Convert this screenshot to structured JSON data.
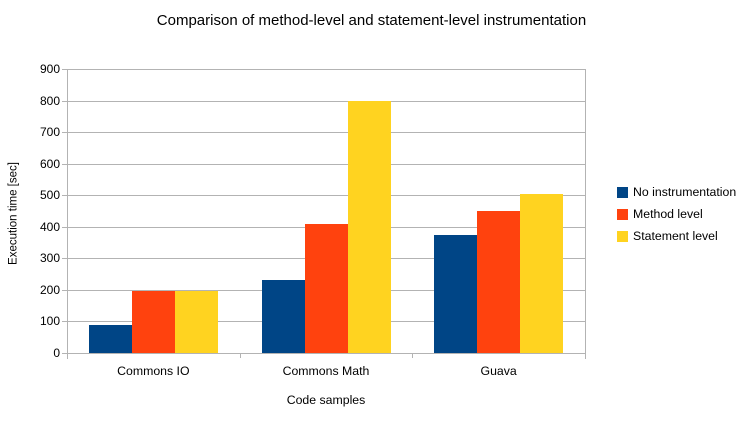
{
  "chart_data": {
    "type": "bar",
    "title": "Comparison of method-level and statement-level instrumentation",
    "xlabel": "Code samples",
    "ylabel": "Execution time [sec]",
    "categories": [
      "Commons IO",
      "Commons Math",
      "Guava"
    ],
    "series": [
      {
        "name": "No instrumentation",
        "color": "#004586",
        "values": [
          88,
          230,
          375
        ]
      },
      {
        "name": "Method level",
        "color": "#FF420E",
        "values": [
          195,
          410,
          450
        ]
      },
      {
        "name": "Statement level",
        "color": "#FFD320",
        "values": [
          195,
          800,
          505
        ]
      }
    ],
    "ylim": [
      0,
      900
    ],
    "ytick_step": 100,
    "ytick_labels": [
      "0",
      "100",
      "200",
      "300",
      "400",
      "500",
      "600",
      "700",
      "800",
      "900"
    ],
    "grid": true,
    "legend_position": "right",
    "colors": {
      "gridline": "#b3b3b3",
      "axis": "#b3b3b3",
      "text": "#000000",
      "background": "#ffffff"
    }
  }
}
